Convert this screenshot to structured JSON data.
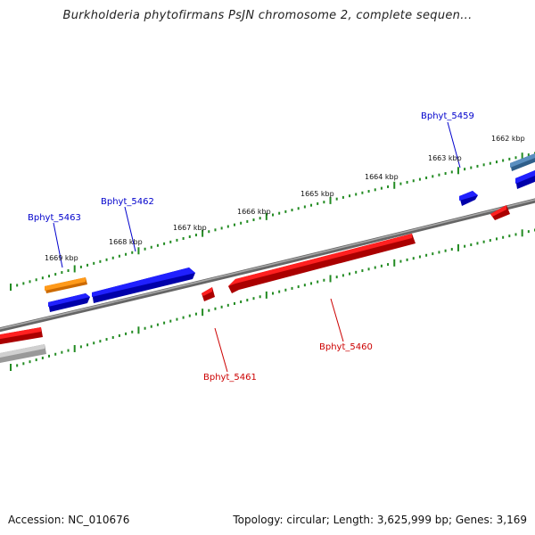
{
  "title": "Burkholderia phytofirmans PsJN chromosome 2, complete sequen...",
  "accession": "Accession: NC_010676",
  "topology": "Topology: circular; Length: 3,625,999 bp; Genes: 3,169",
  "colors": {
    "forward_gene": "#0000ee",
    "reverse_gene": "#ee0000",
    "orange_gene": "#ff8c00",
    "steelblue_gene": "#4682b4",
    "gray_gene": "#aaaaaa",
    "backbone": "#777777",
    "ticks": "#228b22",
    "forward_label": "#0000cc",
    "reverse_label": "#cc0000"
  },
  "tick_labels": [
    {
      "text": "1669 kbp"
    },
    {
      "text": "1668 kbp"
    },
    {
      "text": "1667 kbp"
    },
    {
      "text": "1666 kbp"
    },
    {
      "text": "1665 kbp"
    },
    {
      "text": "1664 kbp"
    },
    {
      "text": "1663 kbp"
    },
    {
      "text": "1662 kbp"
    }
  ],
  "gene_labels": [
    {
      "text": "Bphyt_5463",
      "strand": "forward"
    },
    {
      "text": "Bphyt_5462",
      "strand": "forward"
    },
    {
      "text": "Bphyt_5459",
      "strand": "forward"
    },
    {
      "text": "Bphyt_5461",
      "strand": "reverse"
    },
    {
      "text": "Bphyt_5460",
      "strand": "reverse"
    }
  ]
}
